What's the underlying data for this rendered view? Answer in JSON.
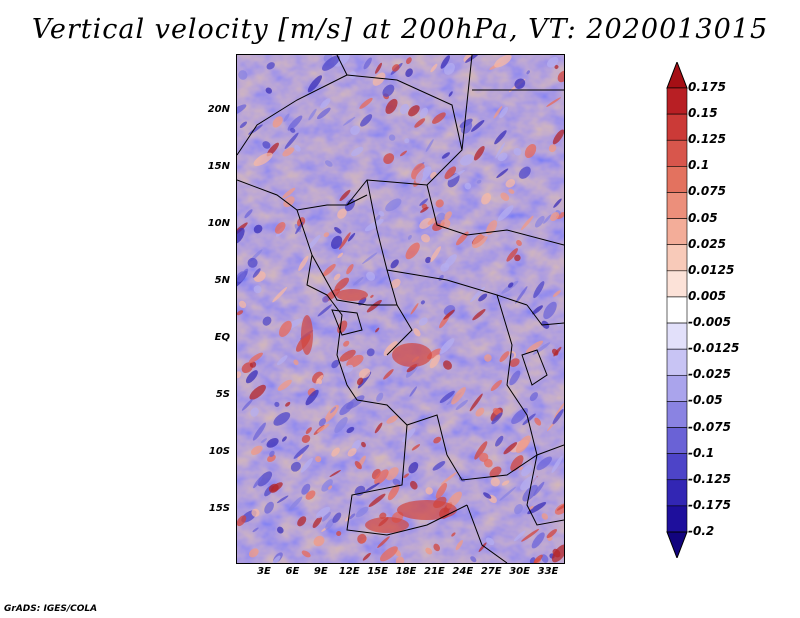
{
  "title": "Vertical velocity [m/s] at 200hPa, VT: 2020013015",
  "credit": "GrADS: IGES/COLA",
  "map": {
    "lat_labels": [
      "20N",
      "15N",
      "10N",
      "5N",
      "EQ",
      "5S",
      "10S",
      "15S"
    ],
    "lon_labels": [
      "3E",
      "6E",
      "9E",
      "12E",
      "15E",
      "18E",
      "21E",
      "24E",
      "27E",
      "30E",
      "33E"
    ]
  },
  "colorbar": {
    "labels": [
      "0.175",
      "0.15",
      "0.125",
      "0.1",
      "0.075",
      "0.05",
      "0.025",
      "0.0125",
      "0.005",
      "-0.005",
      "-0.0125",
      "-0.025",
      "-0.05",
      "-0.075",
      "-0.1",
      "-0.125",
      "-0.175",
      "-0.2"
    ],
    "colors": [
      "#a50f15",
      "#b81f24",
      "#cb3a37",
      "#d8564c",
      "#e3725f",
      "#ec8f7b",
      "#f3ad99",
      "#f8cab9",
      "#fce2d8",
      "#ffffff",
      "#e2e0fa",
      "#c8c4f4",
      "#aaa4ec",
      "#8a83e2",
      "#6a62d6",
      "#4d44c8",
      "#3226b4",
      "#1e0f9c",
      "#12047e"
    ]
  }
}
